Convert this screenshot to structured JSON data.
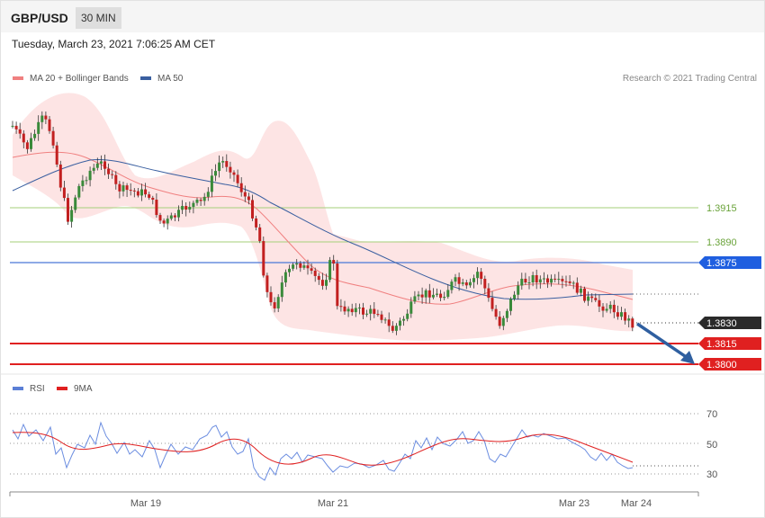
{
  "header": {
    "symbol": "GBP/USD",
    "timeframe": "30 MIN",
    "date": "Tuesday, March 23, 2021 7:06:25 AM CET"
  },
  "legend_main": [
    {
      "label": "MA 20 + Bollinger Bands",
      "color": "#f08080"
    },
    {
      "label": "MA 50",
      "color": "#3a5fa0"
    }
  ],
  "legend_rsi": [
    {
      "label": "RSI",
      "color": "#5b7fd6"
    },
    {
      "label": "9MA",
      "color": "#e02020"
    }
  ],
  "credit": "Research © 2021 Trading Central",
  "chart_data": [
    {
      "type": "candlestick",
      "title": "",
      "x_tick_labels": [
        "Mar 19",
        "Mar 21",
        "Mar 23",
        "Mar 24"
      ],
      "price_axis": [
        1.379,
        1.399
      ],
      "levels": [
        {
          "value": "1.3915",
          "kind": "resistance",
          "color": "#7cb342"
        },
        {
          "value": "1.3890",
          "kind": "resistance",
          "color": "#7cb342"
        },
        {
          "value": "1.3875",
          "kind": "pivot",
          "color": "#1f5fe0"
        },
        {
          "value": "1.3830",
          "kind": "last",
          "color": "#2a2a2a"
        },
        {
          "value": "1.3815",
          "kind": "support",
          "color": "#e02020"
        },
        {
          "value": "1.3800",
          "kind": "support",
          "color": "#e02020"
        }
      ],
      "series_notes": [
        "MA 20 + Bollinger Bands",
        "MA 50"
      ],
      "arrow": "bearish, from last price toward 1.3800"
    },
    {
      "type": "line",
      "title": "",
      "y_ticks": [
        "70",
        "50",
        "30"
      ],
      "series": [
        {
          "name": "RSI"
        },
        {
          "name": "9MA"
        }
      ]
    }
  ]
}
